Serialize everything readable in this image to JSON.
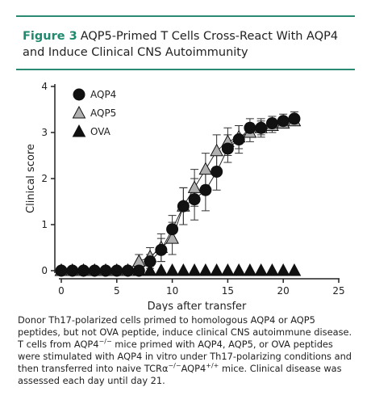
{
  "figure": {
    "label": "Figure 3",
    "title": "AQP5-Primed T Cells Cross-React With AQP4 and Induce Clinical CNS Autoimmunity",
    "caption": [
      "Donor Th17-polarized cells primed to homologous AQP4 or AQP5 peptides, but not OVA peptide, induce clinical CNS autoimmune disease. T cells from AQP4",
      "−/−",
      " mice primed with AQP4, AQP5, or OVA peptides were stimulated with AQP4 in vitro under Th17-polarizing conditions and then transferred into naive TCRα",
      "−/−",
      "AQP4",
      "+/+",
      " mice. Clinical disease was assessed each day until day 21."
    ]
  },
  "chart_data": {
    "type": "line",
    "x_label": "Days after transfer",
    "y_label": "Clinical score",
    "x": [
      0,
      1,
      2,
      3,
      4,
      5,
      6,
      7,
      8,
      9,
      10,
      11,
      12,
      13,
      14,
      15,
      16,
      17,
      18,
      19,
      20,
      21
    ],
    "series": [
      {
        "name": "AQP4",
        "color": "#111111",
        "marker": "circle",
        "line": true,
        "values": [
          0,
          0,
          0,
          0,
          0,
          0,
          0,
          0,
          0.2,
          0.45,
          0.9,
          1.4,
          1.55,
          1.75,
          2.15,
          2.65,
          2.85,
          3.1,
          3.1,
          3.2,
          3.25,
          3.3
        ],
        "errors": [
          0,
          0,
          0,
          0,
          0,
          0,
          0,
          0,
          0.15,
          0.25,
          0.3,
          0.4,
          0.45,
          0.45,
          0.4,
          0.3,
          0.3,
          0.2,
          0.2,
          0.15,
          0.15,
          0.15
        ]
      },
      {
        "name": "AQP5",
        "color": "#b0b0b0",
        "marker": "triangle",
        "line": true,
        "values": [
          0,
          0,
          0,
          0,
          0,
          0,
          0,
          0.2,
          0.3,
          0.5,
          0.7,
          1.4,
          1.8,
          2.2,
          2.6,
          2.8,
          2.9,
          3.0,
          3.1,
          3.15,
          3.2,
          3.25
        ],
        "errors": [
          0,
          0,
          0,
          0,
          0,
          0,
          0,
          0.15,
          0.2,
          0.3,
          0.35,
          0.4,
          0.4,
          0.35,
          0.35,
          0.3,
          0.25,
          0.2,
          0.15,
          0.15,
          0.1,
          0.1
        ]
      },
      {
        "name": "OVA",
        "color": "#111111",
        "marker": "triangle",
        "line": false,
        "values": [
          0,
          0,
          0,
          0,
          0,
          0,
          0,
          0,
          0,
          0,
          0,
          0,
          0,
          0,
          0,
          0,
          0,
          0,
          0,
          0,
          0,
          0
        ],
        "errors": [
          0,
          0,
          0,
          0,
          0,
          0,
          0,
          0,
          0,
          0,
          0,
          0,
          0,
          0,
          0,
          0,
          0,
          0,
          0,
          0,
          0,
          0
        ]
      }
    ],
    "xlim": [
      0,
      25
    ],
    "xticks": [
      0,
      5,
      10,
      15,
      20,
      25
    ],
    "ylim": [
      0,
      4
    ],
    "yticks": [
      0,
      1,
      2,
      3,
      4
    ],
    "grid": false,
    "legend": "upper left"
  }
}
